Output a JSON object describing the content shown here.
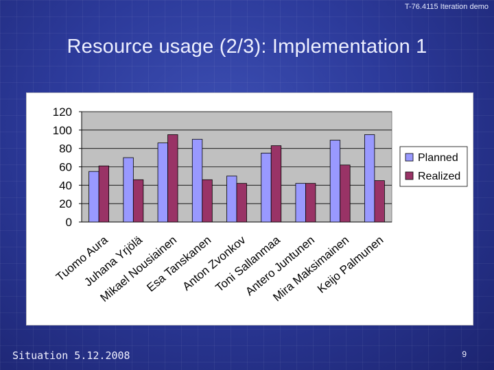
{
  "slide": {
    "header_note": "T-76.4115 Iteration demo",
    "title": "Resource usage (2/3): Implementation 1",
    "footer_date": "Situation 5.12.2008",
    "page_number": "9"
  },
  "chart_data": {
    "type": "bar",
    "title": "",
    "xlabel": "",
    "ylabel": "",
    "ylim": [
      0,
      120
    ],
    "yticks": [
      0,
      20,
      40,
      60,
      80,
      100,
      120
    ],
    "grid": true,
    "legend": "right",
    "categories": [
      "Tuomo Aura",
      "Juhana Yrjölä",
      "Mikael Nousiainen",
      "Esa Tanskanen",
      "Anton Zvonkov",
      "Toni Sallanmaa",
      "Antero Juntunen",
      "Mira Maksimainen",
      "Keijo Palmunen"
    ],
    "series": [
      {
        "name": "Planned",
        "values": [
          55,
          70,
          86,
          90,
          50,
          75,
          42,
          89,
          95
        ],
        "color": "#9999ff"
      },
      {
        "name": "Realized",
        "values": [
          61,
          46,
          95,
          46,
          42,
          83,
          42,
          62,
          45
        ],
        "color": "#993366"
      }
    ],
    "plot_background": "#c0c0c0"
  }
}
